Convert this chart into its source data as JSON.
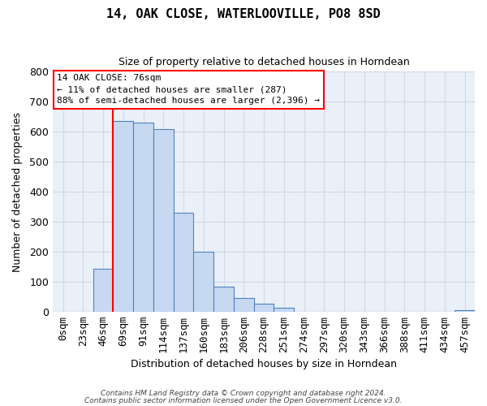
{
  "title": "14, OAK CLOSE, WATERLOOVILLE, PO8 8SD",
  "subtitle": "Size of property relative to detached houses in Horndean",
  "xlabel": "Distribution of detached houses by size in Horndean",
  "ylabel": "Number of detached properties",
  "bar_labels": [
    "0sqm",
    "23sqm",
    "46sqm",
    "69sqm",
    "91sqm",
    "114sqm",
    "137sqm",
    "160sqm",
    "183sqm",
    "206sqm",
    "228sqm",
    "251sqm",
    "274sqm",
    "297sqm",
    "320sqm",
    "343sqm",
    "366sqm",
    "388sqm",
    "411sqm",
    "434sqm",
    "457sqm"
  ],
  "bar_heights": [
    0,
    0,
    143,
    637,
    630,
    609,
    331,
    200,
    83,
    46,
    27,
    12,
    0,
    0,
    0,
    0,
    0,
    0,
    0,
    0,
    5
  ],
  "bar_color": "#c6d9f1",
  "bar_edge_color": "#4f81bd",
  "marker_color": "red",
  "marker_bar_index": 3,
  "ylim": [
    0,
    800
  ],
  "yticks": [
    0,
    100,
    200,
    300,
    400,
    500,
    600,
    700,
    800
  ],
  "annotation_line0": "14 OAK CLOSE: 76sqm",
  "annotation_line1": "← 11% of detached houses are smaller (287)",
  "annotation_line2": "88% of semi-detached houses are larger (2,396) →",
  "box_edge_color": "red",
  "footnote1": "Contains HM Land Registry data © Crown copyright and database right 2024.",
  "footnote2": "Contains public sector information licensed under the Open Government Licence v3.0.",
  "grid_color": "#d0d8e8",
  "background_color": "#eaf0f8"
}
